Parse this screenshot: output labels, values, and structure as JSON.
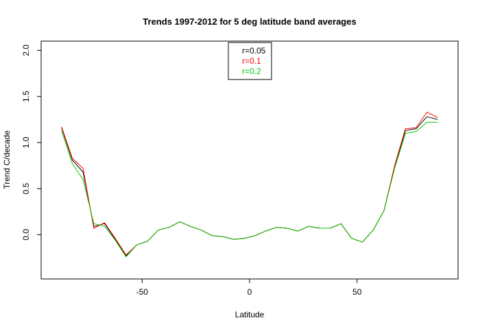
{
  "chart_data": {
    "type": "line",
    "title": "Trends 1997-2012 for 5 deg latitude band averages",
    "xlabel": "Latitude",
    "ylabel": "Trend C/decade",
    "xlim": [
      -97,
      97
    ],
    "ylim": [
      -0.48,
      2.1
    ],
    "x_ticks": [
      "-50",
      "0",
      "50"
    ],
    "y_ticks": [
      "0.0",
      "0.5",
      "1.0",
      "1.5",
      "2.0"
    ],
    "x_tick_values": [
      -50,
      0,
      50
    ],
    "y_tick_values": [
      0.0,
      0.5,
      1.0,
      1.5,
      2.0
    ],
    "grid": false,
    "legend_position": "top-center",
    "x": [
      -87.5,
      -82.5,
      -77.5,
      -72.5,
      -67.5,
      -62.5,
      -57.5,
      -52.5,
      -47.5,
      -42.5,
      -37.5,
      -32.5,
      -27.5,
      -22.5,
      -17.5,
      -12.5,
      -7.5,
      -2.5,
      2.5,
      7.5,
      12.5,
      17.5,
      22.5,
      27.5,
      32.5,
      37.5,
      42.5,
      47.5,
      52.5,
      57.5,
      62.5,
      67.5,
      72.5,
      77.5,
      82.5,
      87.5
    ],
    "series": [
      {
        "name": "r=0.05",
        "color": "#000000",
        "values": [
          1.16,
          0.81,
          0.68,
          0.09,
          0.12,
          -0.05,
          -0.23,
          -0.11,
          -0.07,
          0.05,
          0.08,
          0.14,
          0.09,
          0.05,
          -0.01,
          -0.02,
          -0.05,
          -0.04,
          -0.01,
          0.04,
          0.08,
          0.07,
          0.04,
          0.09,
          0.07,
          0.07,
          0.12,
          -0.04,
          -0.08,
          0.05,
          0.26,
          0.73,
          1.13,
          1.15,
          1.28,
          1.25
        ]
      },
      {
        "name": "r=0.1",
        "color": "#ff0000",
        "values": [
          1.17,
          0.83,
          0.72,
          0.07,
          0.13,
          -0.04,
          -0.22,
          -0.11,
          -0.07,
          0.05,
          0.08,
          0.14,
          0.09,
          0.05,
          -0.01,
          -0.02,
          -0.05,
          -0.04,
          -0.01,
          0.04,
          0.08,
          0.07,
          0.04,
          0.09,
          0.07,
          0.07,
          0.12,
          -0.04,
          -0.08,
          0.05,
          0.26,
          0.75,
          1.15,
          1.16,
          1.33,
          1.27
        ]
      },
      {
        "name": "r=0.2",
        "color": "#00cc00",
        "values": [
          1.13,
          0.77,
          0.6,
          0.12,
          0.09,
          -0.06,
          -0.24,
          -0.11,
          -0.07,
          0.05,
          0.08,
          0.14,
          0.09,
          0.05,
          -0.01,
          -0.02,
          -0.05,
          -0.04,
          -0.01,
          0.04,
          0.08,
          0.07,
          0.04,
          0.09,
          0.07,
          0.07,
          0.12,
          -0.04,
          -0.08,
          0.05,
          0.26,
          0.72,
          1.1,
          1.12,
          1.22,
          1.22
        ]
      }
    ]
  }
}
